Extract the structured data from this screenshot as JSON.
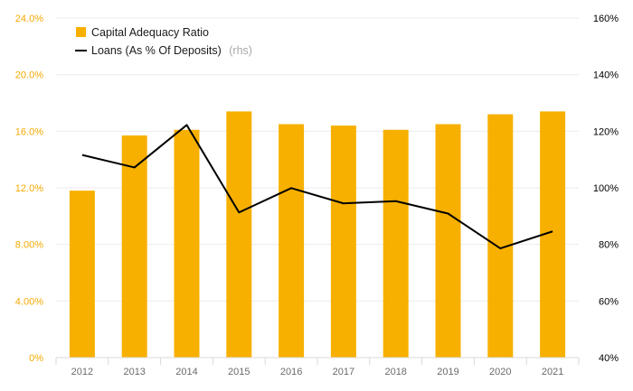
{
  "chart_data": {
    "type": "bar",
    "categories": [
      "2012",
      "2013",
      "2014",
      "2015",
      "2016",
      "2017",
      "2018",
      "2019",
      "2020",
      "2021"
    ],
    "series": [
      {
        "name": "Capital Adequacy Ratio",
        "type": "bar",
        "axis": "left",
        "color": "#f7b000",
        "values": [
          11.8,
          15.7,
          16.1,
          17.4,
          16.5,
          16.4,
          16.1,
          16.5,
          17.2,
          17.4
        ]
      },
      {
        "name": "Loans (As % Of Deposits)",
        "name_suffix": "(rhs)",
        "type": "line",
        "axis": "right",
        "color": "#000000",
        "values": [
          111.6,
          107.2,
          122.2,
          91.3,
          99.9,
          94.5,
          95.3,
          90.9,
          78.6,
          84.6
        ]
      }
    ],
    "y_left": {
      "range": [
        0,
        24
      ],
      "ticks": [
        0,
        4,
        8,
        12,
        16,
        20,
        24
      ],
      "tick_labels": [
        "0%",
        "4.00%",
        "8.00%",
        "12.0%",
        "16.0%",
        "20.0%",
        "24.0%"
      ],
      "color": "#f4a900"
    },
    "y_right": {
      "range": [
        40,
        160
      ],
      "ticks": [
        40,
        60,
        80,
        100,
        120,
        140,
        160
      ],
      "tick_labels": [
        "40%",
        "60%",
        "80%",
        "100%",
        "120%",
        "140%",
        "160%"
      ],
      "color": "#000000"
    },
    "grid": true,
    "legend_position": "top-left",
    "title": "",
    "xlabel": "",
    "ylabel": ""
  }
}
